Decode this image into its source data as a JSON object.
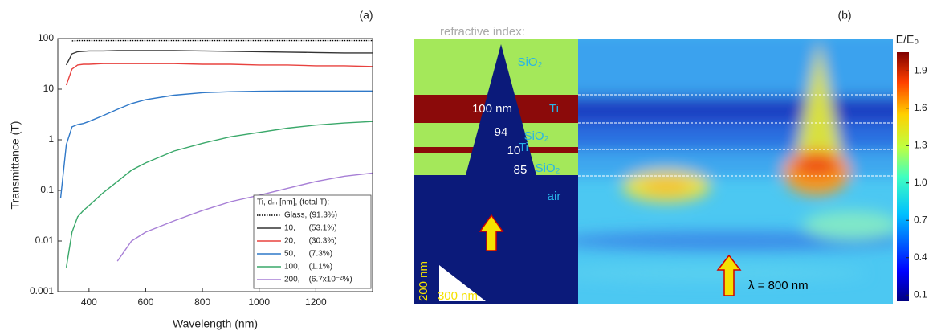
{
  "chart_data": [
    {
      "type": "line",
      "panel_label": "(a)",
      "x_label": "Wavelength (nm)",
      "y_label": "Transmittance (T)",
      "x": [
        300,
        320,
        340,
        360,
        380,
        400,
        450,
        500,
        550,
        600,
        700,
        800,
        900,
        1000,
        1100,
        1200,
        1300,
        1400
      ],
      "xlim": [
        290,
        1400
      ],
      "xticks": [
        400,
        600,
        800,
        1000,
        1200
      ],
      "ylim": [
        0.001,
        100
      ],
      "yticks": [
        0.001,
        0.01,
        0.1,
        1,
        10,
        100
      ],
      "log_y": true,
      "legend_title": "Ti, dₘ [nm], (total T):",
      "legend": "lower right",
      "series": [
        {
          "name": "Glass, (91.3%)",
          "color": "#000000",
          "style": "dotted",
          "values": [
            null,
            null,
            90,
            91,
            91,
            91,
            91,
            91,
            91,
            91,
            91,
            91,
            91,
            91,
            91,
            91,
            91,
            91
          ]
        },
        {
          "name": "10,      (53.1%)",
          "color": "#333333",
          "style": "solid",
          "values": [
            null,
            30,
            50,
            55,
            56,
            57,
            57,
            58,
            58,
            58,
            58,
            57,
            56,
            55,
            54,
            53,
            52,
            52
          ]
        },
        {
          "name": "20,      (30.3%)",
          "color": "#e8423f",
          "style": "solid",
          "values": [
            null,
            12,
            25,
            30,
            31,
            31,
            32,
            32,
            32,
            32,
            32,
            31,
            31,
            30,
            30,
            29,
            29,
            28
          ]
        },
        {
          "name": "50,      (7.3%)",
          "color": "#2f78c8",
          "style": "solid",
          "values": [
            0.07,
            0.8,
            1.8,
            2.0,
            2.1,
            2.3,
            3.0,
            4.0,
            5.2,
            6.2,
            7.6,
            8.5,
            8.9,
            9.1,
            9.2,
            9.2,
            9.2,
            9.2
          ]
        },
        {
          "name": "100,    (1.1%)",
          "color": "#3aa86a",
          "style": "solid",
          "values": [
            null,
            0.003,
            0.015,
            0.03,
            0.04,
            0.05,
            0.09,
            0.15,
            0.25,
            0.35,
            0.6,
            0.85,
            1.15,
            1.4,
            1.7,
            1.95,
            2.15,
            2.3
          ]
        },
        {
          "name": "200,    (6.7x10⁻²%)",
          "color": "#a77fd6",
          "style": "solid",
          "values": [
            null,
            null,
            null,
            null,
            null,
            null,
            null,
            0.004,
            0.01,
            0.015,
            0.025,
            0.04,
            0.06,
            0.08,
            0.11,
            0.15,
            0.19,
            0.22
          ]
        }
      ]
    },
    {
      "type": "heatmap",
      "panel_label": "(b)",
      "colorbar_title": "E/E₀",
      "clim": [
        0.05,
        2.05
      ],
      "cticks": [
        0.1,
        0.4,
        0.7,
        {
          "value": 1,
          "label": "1.0"
        },
        1.3,
        1.6,
        1.9
      ],
      "labels": [
        "refractive index:",
        "SiO₂",
        "100 nm",
        "Ti",
        "94",
        "SiO₂",
        "10",
        "Ti",
        "85",
        "SiO₂",
        "air",
        "200 nm",
        "300 nm",
        "λ = 800 nm"
      ]
    }
  ]
}
